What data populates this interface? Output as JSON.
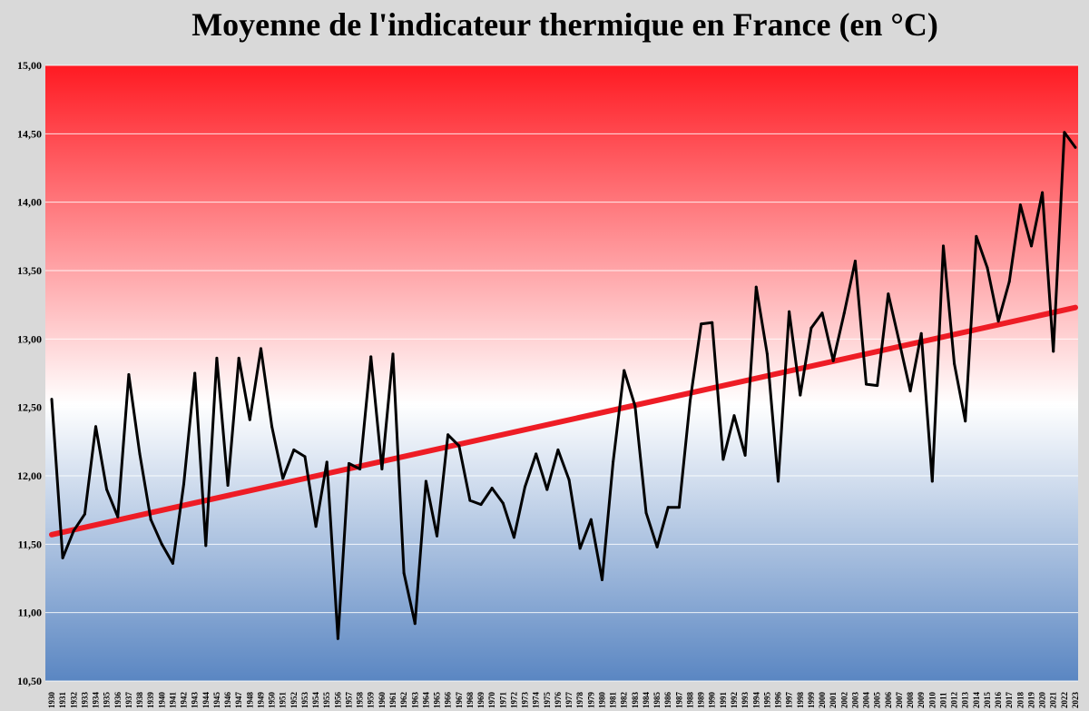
{
  "chart_data": {
    "type": "line",
    "title": "Moyenne de l'indicateur thermique en France (en °C)",
    "xlabel": "",
    "ylabel": "",
    "ylim": [
      10.5,
      15.0
    ],
    "yticks": [
      "10,50",
      "11,00",
      "11,50",
      "12,00",
      "12,50",
      "13,00",
      "13,50",
      "14,00",
      "14,50",
      "15,00"
    ],
    "grid": true,
    "x": [
      1930,
      1931,
      1932,
      1933,
      1934,
      1935,
      1936,
      1937,
      1938,
      1939,
      1940,
      1941,
      1942,
      1943,
      1944,
      1945,
      1946,
      1947,
      1948,
      1949,
      1950,
      1951,
      1952,
      1953,
      1954,
      1955,
      1956,
      1957,
      1958,
      1959,
      1960,
      1961,
      1962,
      1963,
      1964,
      1965,
      1966,
      1967,
      1968,
      1969,
      1970,
      1971,
      1972,
      1973,
      1974,
      1975,
      1976,
      1977,
      1978,
      1979,
      1980,
      1981,
      1982,
      1983,
      1984,
      1985,
      1986,
      1987,
      1988,
      1989,
      1990,
      1991,
      1992,
      1993,
      1994,
      1995,
      1996,
      1997,
      1998,
      1999,
      2000,
      2001,
      2002,
      2003,
      2004,
      2005,
      2006,
      2007,
      2008,
      2009,
      2010,
      2011,
      2012,
      2013,
      2014,
      2015,
      2016,
      2017,
      2018,
      2019,
      2020,
      2021,
      2022,
      2023
    ],
    "series": [
      {
        "values": [
          12.56,
          11.4,
          11.6,
          11.72,
          12.36,
          11.9,
          11.7,
          12.74,
          12.16,
          11.68,
          11.5,
          11.36,
          11.94,
          12.75,
          11.49,
          12.86,
          11.93,
          12.86,
          12.41,
          12.93,
          12.36,
          11.98,
          12.19,
          12.14,
          11.63,
          12.1,
          10.81,
          12.09,
          12.05,
          12.87,
          12.05,
          12.89,
          11.29,
          10.92,
          11.96,
          11.56,
          12.3,
          12.22,
          11.82,
          11.79,
          11.91,
          11.8,
          11.55,
          11.92,
          12.16,
          11.9,
          12.19,
          11.97,
          11.47,
          11.68,
          11.24,
          12.1,
          12.77,
          12.51,
          11.73,
          11.48,
          11.77,
          11.77,
          12.55,
          13.11,
          13.12,
          12.12,
          12.44,
          12.15,
          13.38,
          12.89,
          11.96,
          13.2,
          12.59,
          13.08,
          13.19,
          12.84,
          13.19,
          13.57,
          12.67,
          12.66,
          13.33,
          12.98,
          12.62,
          13.04,
          11.96,
          13.68,
          12.82,
          12.4,
          13.75,
          13.52,
          13.13,
          13.42,
          13.98,
          13.68,
          14.07,
          12.91,
          14.51,
          14.4
        ],
        "color": "#000000"
      }
    ],
    "trend": {
      "start": 11.57,
      "end": 13.23,
      "color": "#ee1c25"
    },
    "background_gradient": [
      "#ff1a22",
      "#ffffff",
      "#5a86c2"
    ]
  }
}
